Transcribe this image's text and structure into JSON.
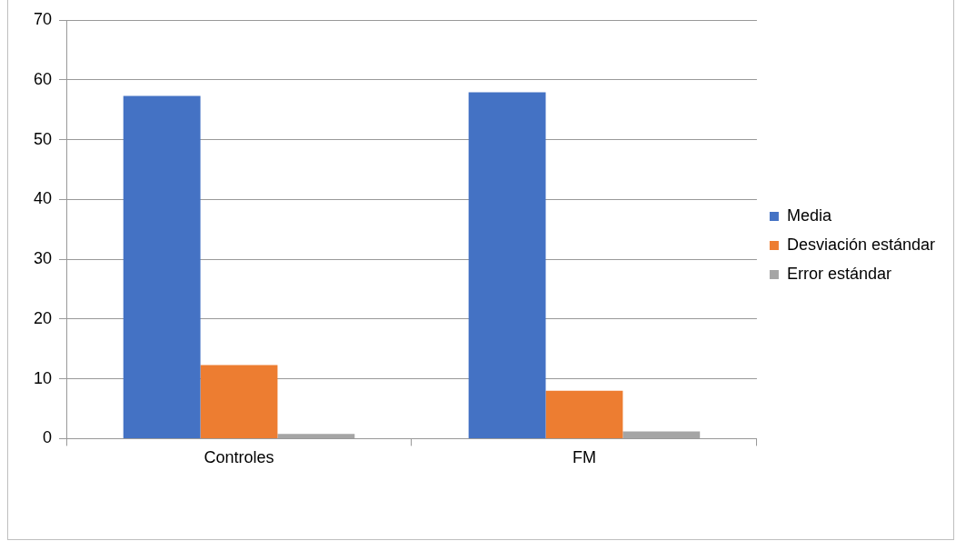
{
  "chart_data": {
    "type": "bar",
    "categories": [
      "Controles",
      "FM"
    ],
    "series": [
      {
        "name": "Media",
        "color": "#4472c4",
        "values": [
          57.3,
          57.9
        ]
      },
      {
        "name": "Desviación estándar",
        "color": "#ed7d31",
        "values": [
          12.3,
          8.0
        ]
      },
      {
        "name": "Error estándar",
        "color": "#a5a5a5",
        "values": [
          0.8,
          1.2
        ]
      }
    ],
    "ylim": [
      0,
      70
    ],
    "yticks": [
      0,
      10,
      20,
      30,
      40,
      50,
      60,
      70
    ],
    "grid": "y",
    "legend": "right"
  }
}
